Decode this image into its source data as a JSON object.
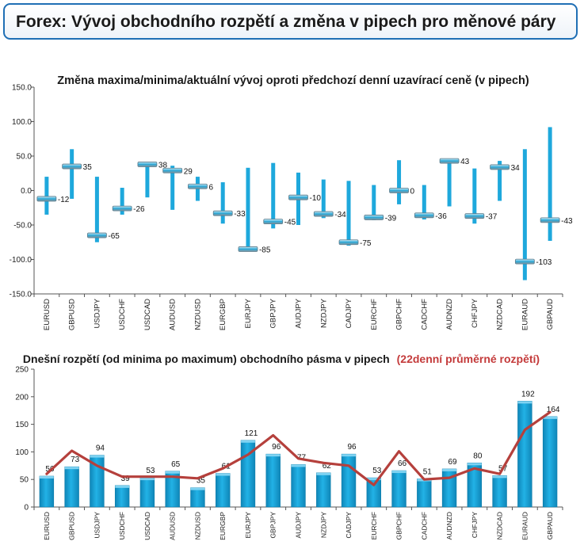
{
  "page_title": "Forex: Vývoj obchodního rozpětí a změna v pipech pro měnové páry",
  "colors": {
    "accent_border": "#1f6fb5",
    "bar_blue": "#1ea8dc",
    "bar_dark": "#0f7fae",
    "line_red": "#c0392b",
    "red_text": "#c43b3b"
  },
  "chart_data": [
    {
      "type": "candlestick",
      "title": "Změna maxima/minima/aktuální vývoj oproti předchozí denní uzavírací ceně (v pipech)",
      "ylim": [
        -150,
        150
      ],
      "y_ticks": [
        "150.0",
        "100.0",
        "50.0",
        "0.0",
        "-50.0",
        "-100.0",
        "-150.0"
      ],
      "y_tick_values": [
        150,
        100,
        50,
        0,
        -50,
        -100,
        -150
      ],
      "categories": [
        "EURUSD",
        "GBPUSD",
        "USDJPY",
        "USDCHF",
        "USDCAD",
        "AUDUSD",
        "NZDUSD",
        "EURGBP",
        "EURJPY",
        "GBPJPY",
        "AUDJPY",
        "NZDJPY",
        "CADJPY",
        "EURCHF",
        "GBPCHF",
        "CADCHF",
        "AUDNZD",
        "CHFJPY",
        "NZDCAD",
        "EURAUD",
        "GBPAUD"
      ],
      "high": [
        20,
        60,
        20,
        4,
        40,
        36,
        20,
        12,
        33,
        40,
        26,
        16,
        14,
        8,
        44,
        8,
        45,
        32,
        43,
        60,
        92
      ],
      "low": [
        -35,
        -12,
        -75,
        -35,
        -10,
        -28,
        -15,
        -48,
        -85,
        -55,
        -50,
        -40,
        -80,
        -43,
        -20,
        -42,
        -23,
        -48,
        -15,
        -130,
        -73
      ],
      "current": [
        -12,
        35,
        -65,
        -26,
        38,
        29,
        6,
        -33,
        -85,
        -45,
        -10,
        -34,
        -75,
        -39,
        0,
        -36,
        43,
        -37,
        34,
        -103,
        -43
      ],
      "labels": [
        "-12",
        "35",
        "-65",
        "-26",
        "38",
        "29",
        "6",
        "-33",
        "-85",
        "-45",
        "-10",
        "-34",
        "-75",
        "-39",
        "0",
        "-36",
        "43",
        "-37",
        "34",
        "-103",
        "-43"
      ]
    },
    {
      "type": "bar",
      "title_black": "Dnešní rozpětí (od minima po maximum) obchodního pásma v pipech",
      "title_red": "(22denní průměrné rozpětí)",
      "ylim": [
        0,
        250
      ],
      "y_ticks": [
        "250",
        "200",
        "150",
        "100",
        "50",
        "0"
      ],
      "y_tick_values": [
        250,
        200,
        150,
        100,
        50,
        0
      ],
      "categories": [
        "EURUSD",
        "GBPUSD",
        "USDJPY",
        "USDCHF",
        "USDCAD",
        "AUDUSD",
        "NZDUSD",
        "EURGBP",
        "EURJPY",
        "GBPJPY",
        "AUDJPY",
        "NZDJPY",
        "CADJPY",
        "EURCHF",
        "GBPCHF",
        "CADCHF",
        "AUDNZD",
        "CHFJPY",
        "NZDCAD",
        "EURAUD",
        "GBPAUD"
      ],
      "values": [
        56,
        73,
        94,
        39,
        53,
        65,
        35,
        61,
        121,
        96,
        77,
        62,
        96,
        53,
        66,
        51,
        69,
        80,
        57,
        192,
        164
      ],
      "labels": [
        "56",
        "73",
        "94",
        "39",
        "53",
        "65",
        "35",
        "61",
        "121",
        "96",
        "77",
        "62",
        "96",
        "53",
        "66",
        "51",
        "69",
        "80",
        "57",
        "192",
        "164"
      ],
      "avg_22d": [
        60,
        102,
        75,
        55,
        55,
        55,
        52,
        70,
        95,
        130,
        88,
        80,
        75,
        40,
        101,
        50,
        53,
        70,
        60,
        140,
        172
      ]
    }
  ]
}
